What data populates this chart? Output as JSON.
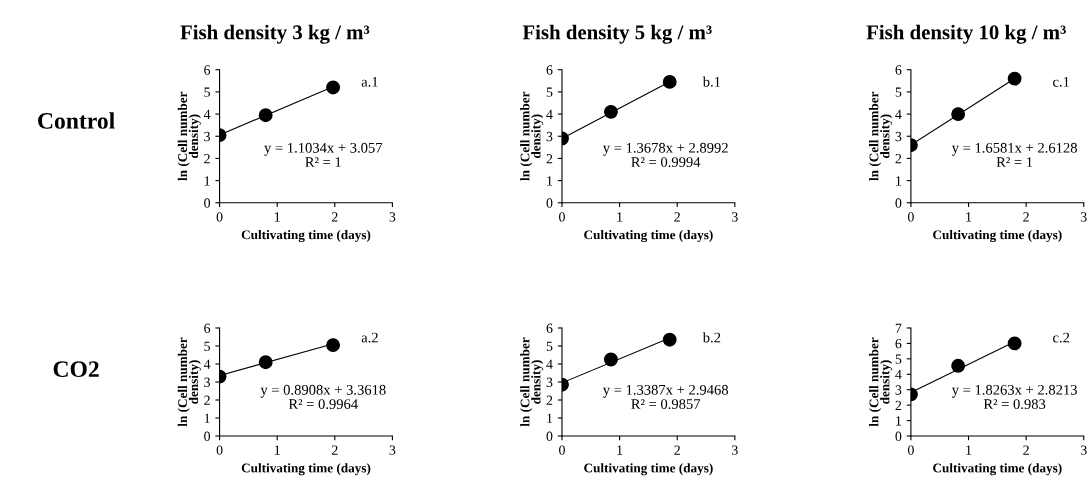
{
  "chart_data": [
    {
      "type": "scatter",
      "title": "Fish density 3 kg / m³",
      "xlabel": "Cultivating time (days)",
      "ylabel": "ln (Cell number\ndensity)",
      "xlim": [
        0,
        3
      ],
      "xticks": [
        0,
        1,
        2,
        3
      ],
      "ylim": [
        0,
        6
      ],
      "yticks": [
        0,
        1,
        2,
        3,
        4,
        5,
        6
      ],
      "grid": false,
      "marker": "circle",
      "series": [
        {
          "x": [
            0,
            0.8,
            1.97
          ],
          "values": [
            3.05,
            3.95,
            5.2
          ],
          "color": "#000000"
        },
        {
          "type": "line",
          "x": [
            0,
            1.97
          ],
          "values": [
            3.06,
            5.23
          ],
          "color": "#000000",
          "marker": "none"
        }
      ],
      "annotations": [
        "a.1",
        "y = 1.1034x + 3.057\nR² = 1",
        "Control"
      ]
    },
    {
      "type": "scatter",
      "title": "Fish density 5 kg / m³",
      "xlabel": "Cultivating time (days)",
      "ylabel": "ln (Cell number\ndensity)",
      "xlim": [
        0,
        3
      ],
      "xticks": [
        0,
        1,
        2,
        3
      ],
      "ylim": [
        0,
        6
      ],
      "yticks": [
        0,
        1,
        2,
        3,
        4,
        5,
        6
      ],
      "grid": false,
      "marker": "circle",
      "series": [
        {
          "x": [
            0,
            0.85,
            1.87
          ],
          "values": [
            2.9,
            4.1,
            5.45
          ],
          "color": "#000000"
        },
        {
          "type": "line",
          "x": [
            0,
            1.87
          ],
          "values": [
            2.9,
            5.46
          ],
          "color": "#000000",
          "marker": "none"
        }
      ],
      "annotations": [
        "b.1",
        "y = 1.3678x + 2.8992\nR² = 0.9994"
      ]
    },
    {
      "type": "scatter",
      "title": "Fish density 10 kg / m³",
      "xlabel": "Cultivating time (days)",
      "ylabel": "ln (Cell number\ndensity)",
      "xlim": [
        0,
        3
      ],
      "xticks": [
        0,
        1,
        2,
        3
      ],
      "ylim": [
        0,
        6
      ],
      "yticks": [
        0,
        1,
        2,
        3,
        4,
        5,
        6
      ],
      "grid": false,
      "marker": "circle",
      "series": [
        {
          "x": [
            0,
            0.82,
            1.8
          ],
          "values": [
            2.6,
            4.0,
            5.6
          ],
          "color": "#000000"
        },
        {
          "type": "line",
          "x": [
            0,
            1.8
          ],
          "values": [
            2.61,
            5.6
          ],
          "color": "#000000",
          "marker": "none"
        }
      ],
      "annotations": [
        "c.1",
        "y = 1.6581x + 2.6128\nR² = 1"
      ]
    },
    {
      "type": "scatter",
      "xlabel": "Cultivating time (days)",
      "ylabel": "ln (Cell number\ndensity)",
      "xlim": [
        0,
        3
      ],
      "xticks": [
        0,
        1,
        2,
        3
      ],
      "ylim": [
        0,
        6
      ],
      "yticks": [
        0,
        1,
        2,
        3,
        4,
        5,
        6
      ],
      "grid": false,
      "marker": "circle",
      "series": [
        {
          "x": [
            0,
            0.8,
            1.97
          ],
          "values": [
            3.3,
            4.1,
            5.05
          ],
          "color": "#000000"
        },
        {
          "type": "line",
          "x": [
            0,
            1.97
          ],
          "values": [
            3.36,
            5.12
          ],
          "color": "#000000",
          "marker": "none"
        }
      ],
      "annotations": [
        "a.2",
        "y = 0.8908x + 3.3618\nR² = 0.9964",
        "CO2"
      ]
    },
    {
      "type": "scatter",
      "xlabel": "Cultivating time (days)",
      "ylabel": "ln (Cell number\ndensity)",
      "xlim": [
        0,
        3
      ],
      "xticks": [
        0,
        1,
        2,
        3
      ],
      "ylim": [
        0,
        6
      ],
      "yticks": [
        0,
        1,
        2,
        3,
        4,
        5,
        6
      ],
      "grid": false,
      "marker": "circle",
      "series": [
        {
          "x": [
            0,
            0.85,
            1.87
          ],
          "values": [
            2.85,
            4.25,
            5.35
          ],
          "color": "#000000"
        },
        {
          "type": "line",
          "x": [
            0,
            1.87
          ],
          "values": [
            2.95,
            5.45
          ],
          "color": "#000000",
          "marker": "none"
        }
      ],
      "annotations": [
        "b.2",
        "y = 1.3387x + 2.9468\nR² = 0.9857"
      ]
    },
    {
      "type": "scatter",
      "xlabel": "Cultivating time (days)",
      "ylabel": "ln (Cell number\ndensity)",
      "xlim": [
        0,
        3
      ],
      "xticks": [
        0,
        1,
        2,
        3
      ],
      "ylim": [
        0,
        7
      ],
      "yticks": [
        0,
        1,
        2,
        3,
        4,
        5,
        6,
        7
      ],
      "grid": false,
      "marker": "circle",
      "series": [
        {
          "x": [
            0,
            0.82,
            1.8
          ],
          "values": [
            2.7,
            4.55,
            6.0
          ],
          "color": "#000000"
        },
        {
          "type": "line",
          "x": [
            0,
            1.8
          ],
          "values": [
            2.82,
            6.11
          ],
          "color": "#000000",
          "marker": "none"
        }
      ],
      "annotations": [
        "c.2",
        "y = 1.8263x + 2.8213\nR² = 0.983"
      ]
    }
  ]
}
